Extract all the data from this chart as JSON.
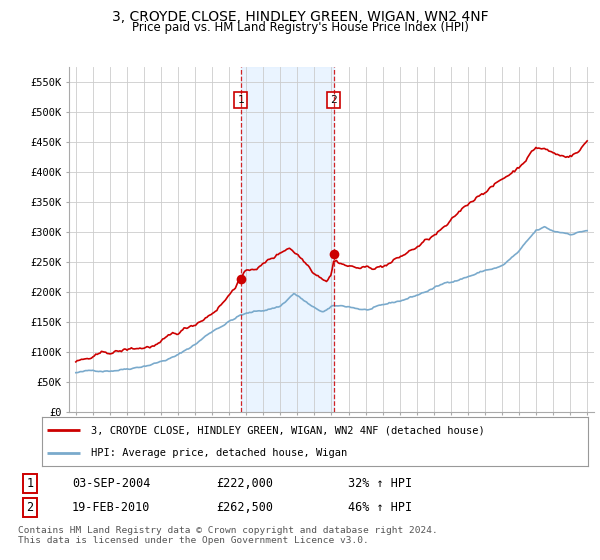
{
  "title": "3, CROYDE CLOSE, HINDLEY GREEN, WIGAN, WN2 4NF",
  "subtitle": "Price paid vs. HM Land Registry's House Price Index (HPI)",
  "ylim": [
    0,
    575000
  ],
  "yticks": [
    0,
    50000,
    100000,
    150000,
    200000,
    250000,
    300000,
    350000,
    400000,
    450000,
    500000,
    550000
  ],
  "ytick_labels": [
    "£0",
    "£50K",
    "£100K",
    "£150K",
    "£200K",
    "£250K",
    "£300K",
    "£350K",
    "£400K",
    "£450K",
    "£500K",
    "£550K"
  ],
  "background_color": "#ffffff",
  "plot_bg_color": "#ffffff",
  "grid_color": "#cccccc",
  "red_color": "#cc0000",
  "blue_color": "#7aaacc",
  "shade_color": "#ddeeff",
  "legend_entry1": "3, CROYDE CLOSE, HINDLEY GREEN, WIGAN, WN2 4NF (detached house)",
  "legend_entry2": "HPI: Average price, detached house, Wigan",
  "sale1_date": "03-SEP-2004",
  "sale1_price": 222000,
  "sale1_year": 2004.67,
  "sale2_date": "19-FEB-2010",
  "sale2_price": 262500,
  "sale2_year": 2010.12,
  "footer_text": "Contains HM Land Registry data © Crown copyright and database right 2024.\nThis data is licensed under the Open Government Licence v3.0.",
  "xlim_left": 1994.6,
  "xlim_right": 2025.4
}
